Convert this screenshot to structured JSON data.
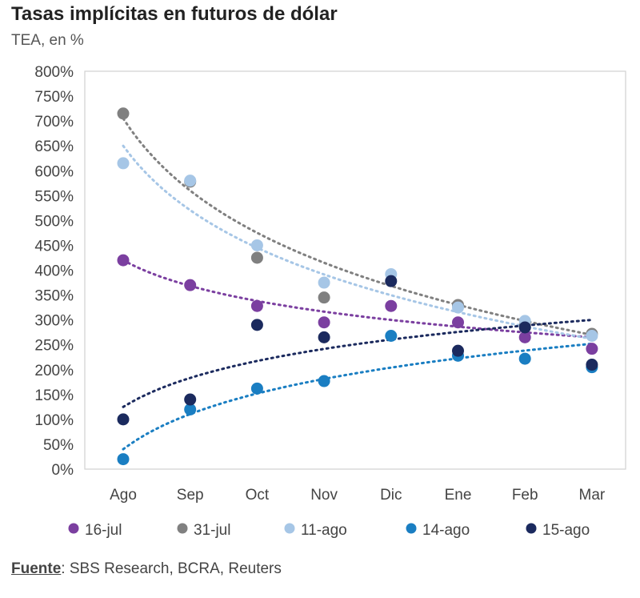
{
  "header": {
    "title": "Tasas implícitas en futuros de dólar",
    "subtitle": "TEA, en %"
  },
  "footer": {
    "source_label": "Fuente",
    "source_text": ": SBS Research, BCRA, Reuters"
  },
  "chart_data": {
    "type": "scatter",
    "title": "Tasas implícitas en futuros de dólar",
    "ylabel": "TEA, en %",
    "xlabel": "",
    "categories": [
      "Ago",
      "Sep",
      "Oct",
      "Nov",
      "Dic",
      "Ene",
      "Feb",
      "Mar"
    ],
    "ylim": [
      0,
      800
    ],
    "yticks": [
      0,
      50,
      100,
      150,
      200,
      250,
      300,
      350,
      400,
      450,
      500,
      550,
      600,
      650,
      700,
      750,
      800
    ],
    "ytick_labels": [
      "0%",
      "50%",
      "100%",
      "150%",
      "200%",
      "250%",
      "300%",
      "350%",
      "400%",
      "450%",
      "500%",
      "550%",
      "600%",
      "650%",
      "700%",
      "750%",
      "800%"
    ],
    "legend_position": "bottom",
    "trendlines": "dotted logarithmic trendline per series",
    "series": [
      {
        "name": "16-jul",
        "color": "#7b3fa0",
        "values": [
          420,
          370,
          328,
          295,
          328,
          295,
          265,
          242
        ],
        "trend": [
          420,
          265
        ]
      },
      {
        "name": "31-jul",
        "color": "#808080",
        "values": [
          715,
          578,
          425,
          345,
          null,
          330,
          290,
          272
        ],
        "trend": [
          705,
          270
        ]
      },
      {
        "name": "11-ago",
        "color": "#a6c6e6",
        "values": [
          615,
          580,
          450,
          375,
          392,
          325,
          298,
          268
        ],
        "trend": [
          650,
          262
        ]
      },
      {
        "name": "14-ago",
        "color": "#1a7ec2",
        "values": [
          20,
          120,
          162,
          177,
          268,
          228,
          222,
          205
        ],
        "trend": [
          40,
          252
        ]
      },
      {
        "name": "15-ago",
        "color": "#1b2a5e",
        "values": [
          100,
          140,
          290,
          265,
          378,
          238,
          285,
          210
        ],
        "trend": [
          125,
          300
        ]
      }
    ]
  }
}
